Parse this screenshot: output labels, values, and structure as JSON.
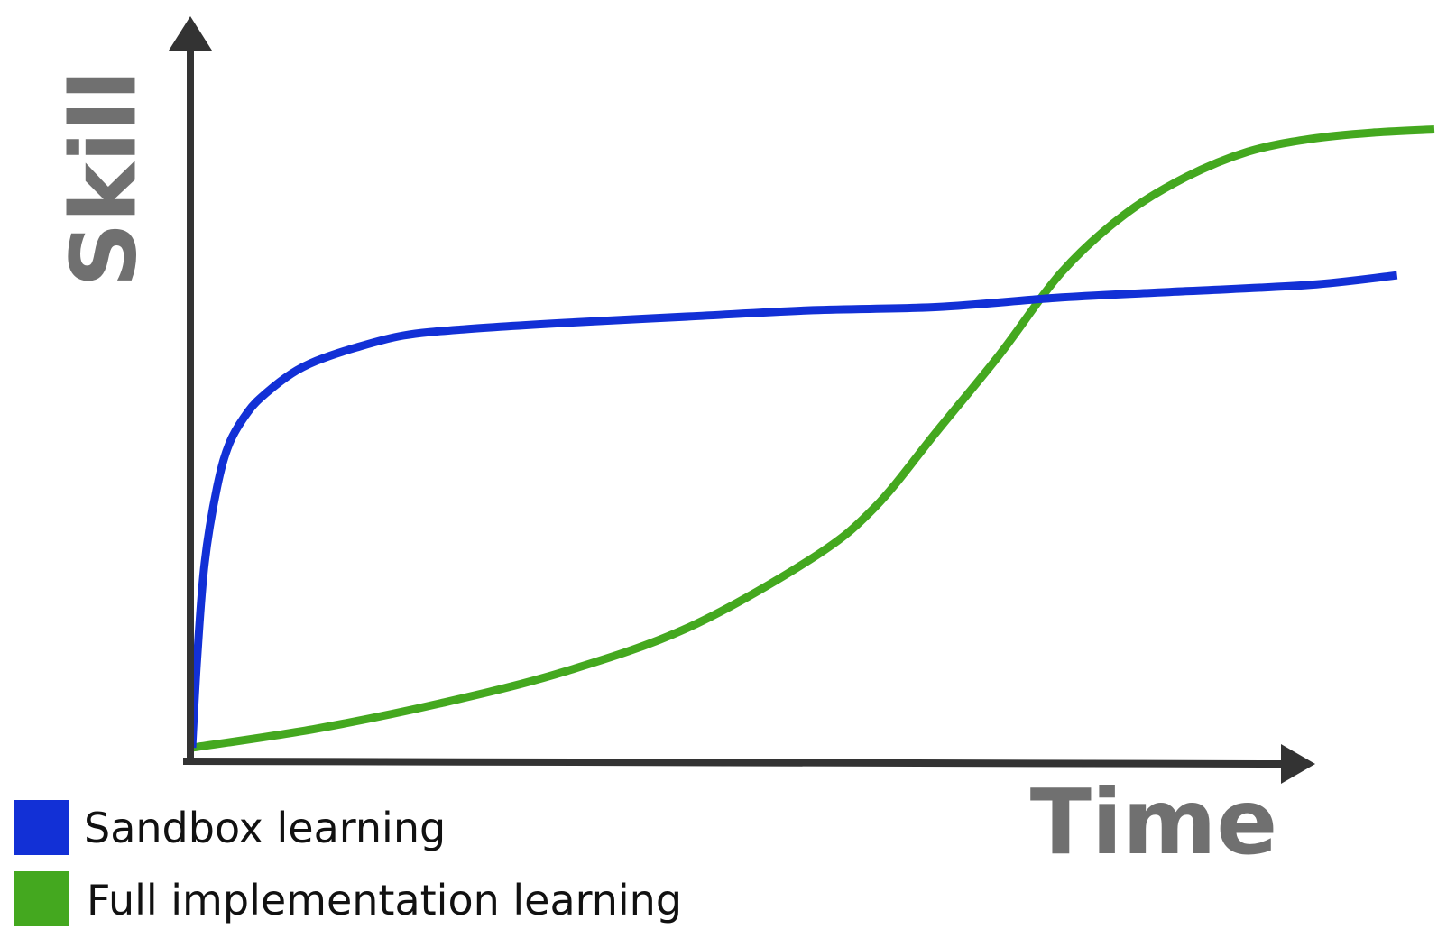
{
  "chart_data": {
    "type": "line",
    "title": "",
    "xlabel": "Time",
    "ylabel": "Skill",
    "xlim": [
      0,
      1
    ],
    "ylim": [
      0,
      1
    ],
    "grid": false,
    "ticks": false,
    "legend_position": "bottom-left",
    "series": [
      {
        "name": "Sandbox learning",
        "color": "#1230d6",
        "x": [
          0.0,
          0.004,
          0.01,
          0.02,
          0.03,
          0.045,
          0.06,
          0.08,
          0.1,
          0.13,
          0.17,
          0.22,
          0.3,
          0.4,
          0.5,
          0.6,
          0.7,
          0.8,
          0.9,
          0.97
        ],
        "values": [
          0.01,
          0.15,
          0.3,
          0.42,
          0.49,
          0.54,
          0.57,
          0.6,
          0.62,
          0.64,
          0.66,
          0.67,
          0.68,
          0.69,
          0.7,
          0.705,
          0.72,
          0.73,
          0.74,
          0.755
        ]
      },
      {
        "name": "Full implementation learning",
        "color": "#44a81f",
        "x": [
          0.0,
          0.1,
          0.2,
          0.3,
          0.4,
          0.5,
          0.55,
          0.6,
          0.65,
          0.7,
          0.75,
          0.8,
          0.85,
          0.9,
          0.95,
          1.0
        ],
        "values": [
          0.01,
          0.04,
          0.08,
          0.13,
          0.2,
          0.31,
          0.39,
          0.51,
          0.63,
          0.76,
          0.85,
          0.91,
          0.95,
          0.97,
          0.98,
          0.985
        ]
      }
    ]
  },
  "legend": {
    "items": [
      {
        "label": "Sandbox learning",
        "color": "#1230d6"
      },
      {
        "label": "Full implementation learning",
        "color": "#44a81f"
      }
    ]
  },
  "axes": {
    "color": "#333333"
  }
}
